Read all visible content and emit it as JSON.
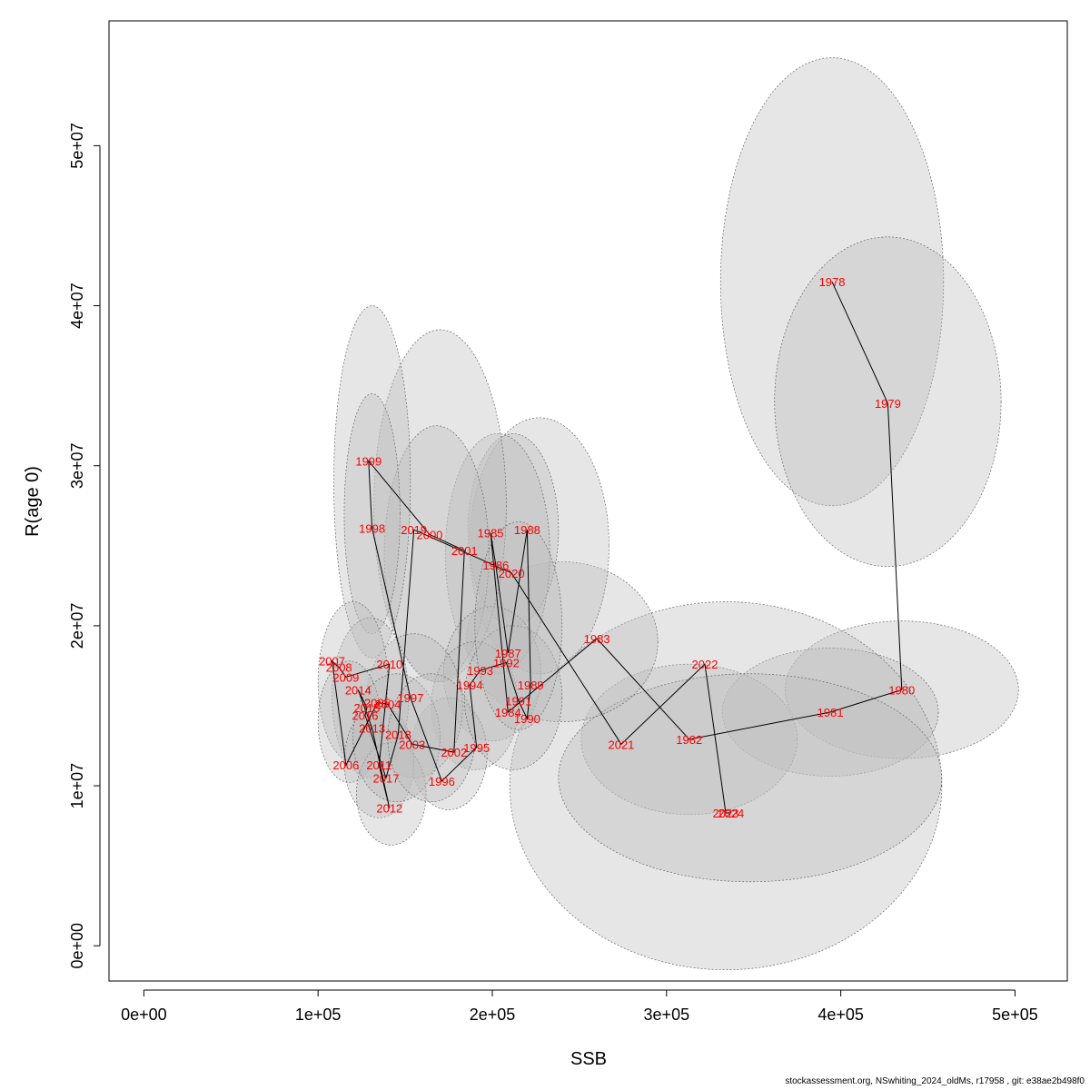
{
  "chart_data": {
    "type": "scatter",
    "xlabel": "SSB",
    "ylabel": "R(age 0)",
    "xlim": [
      -20000,
      530000
    ],
    "ylim": [
      -2200000,
      57800000
    ],
    "xticks": [
      0,
      100000,
      200000,
      300000,
      400000,
      500000
    ],
    "xtick_labels": [
      "0e+00",
      "1e+05",
      "2e+05",
      "3e+05",
      "4e+05",
      "5e+05"
    ],
    "yticks": [
      0,
      10000000,
      20000000,
      30000000,
      40000000,
      50000000
    ],
    "ytick_labels": [
      "0e+00",
      "1e+07",
      "2e+07",
      "3e+07",
      "4e+07",
      "5e+07"
    ],
    "colors": {
      "points": "#ff0000",
      "line": "#000000",
      "ellipse_fill": "#bebebe",
      "ellipse_stroke": "#666666"
    },
    "points": [
      {
        "year": "1978",
        "x": 395000,
        "y": 41500000
      },
      {
        "year": "1979",
        "x": 427000,
        "y": 33900000
      },
      {
        "year": "1980",
        "x": 435000,
        "y": 16000000
      },
      {
        "year": "1981",
        "x": 394000,
        "y": 14600000
      },
      {
        "year": "1982",
        "x": 313000,
        "y": 12900000
      },
      {
        "year": "1983",
        "x": 260000,
        "y": 19200000
      },
      {
        "year": "1984",
        "x": 209000,
        "y": 14600000
      },
      {
        "year": "1985",
        "x": 199000,
        "y": 25800000
      },
      {
        "year": "1986",
        "x": 202000,
        "y": 23800000
      },
      {
        "year": "1987",
        "x": 209000,
        "y": 18300000
      },
      {
        "year": "1988",
        "x": 220000,
        "y": 26000000
      },
      {
        "year": "1989",
        "x": 222000,
        "y": 16300000
      },
      {
        "year": "1990",
        "x": 220000,
        "y": 14200000
      },
      {
        "year": "1991",
        "x": 215000,
        "y": 15300000
      },
      {
        "year": "1992",
        "x": 208000,
        "y": 17700000
      },
      {
        "year": "1993",
        "x": 193000,
        "y": 17200000
      },
      {
        "year": "1994",
        "x": 187000,
        "y": 16300000
      },
      {
        "year": "1995",
        "x": 191000,
        "y": 12400000
      },
      {
        "year": "1996",
        "x": 171000,
        "y": 10300000
      },
      {
        "year": "1997",
        "x": 153000,
        "y": 15500000
      },
      {
        "year": "1998",
        "x": 131000,
        "y": 26100000
      },
      {
        "year": "1999",
        "x": 129000,
        "y": 30300000
      },
      {
        "year": "2000",
        "x": 164000,
        "y": 25700000
      },
      {
        "year": "2001",
        "x": 184000,
        "y": 24700000
      },
      {
        "year": "2002",
        "x": 178000,
        "y": 12100000
      },
      {
        "year": "2003",
        "x": 154000,
        "y": 12600000
      },
      {
        "year": "2004",
        "x": 140000,
        "y": 15100000
      },
      {
        "year": "2005",
        "x": 134000,
        "y": 15200000
      },
      {
        "year": "2006",
        "x": 116000,
        "y": 11300000
      },
      {
        "year": "2007",
        "x": 108000,
        "y": 17800000
      },
      {
        "year": "2008",
        "x": 112000,
        "y": 17400000
      },
      {
        "year": "2009",
        "x": 116000,
        "y": 16800000
      },
      {
        "year": "2010",
        "x": 141000,
        "y": 17600000
      },
      {
        "year": "2011",
        "x": 135000,
        "y": 11300000
      },
      {
        "year": "2012",
        "x": 141000,
        "y": 8600000
      },
      {
        "year": "2013",
        "x": 131000,
        "y": 13600000
      },
      {
        "year": "2014",
        "x": 123000,
        "y": 16000000
      },
      {
        "year": "2015",
        "x": 128000,
        "y": 14900000
      },
      {
        "year": "2016",
        "x": 127000,
        "y": 14400000
      },
      {
        "year": "2017",
        "x": 139000,
        "y": 10500000
      },
      {
        "year": "2018",
        "x": 146000,
        "y": 13200000
      },
      {
        "year": "2019",
        "x": 155000,
        "y": 26000000
      },
      {
        "year": "2020",
        "x": 211000,
        "y": 23300000
      },
      {
        "year": "2021",
        "x": 274000,
        "y": 12600000
      },
      {
        "year": "2022",
        "x": 322000,
        "y": 17600000
      },
      {
        "year": "2023",
        "x": 334000,
        "y": 8300000
      },
      {
        "year": "2024",
        "x": 337000,
        "y": 8300000
      }
    ],
    "uncertainty_ellipses": [
      {
        "cx": 395000,
        "cy": 41500000,
        "rx": 64000,
        "ry": 14000000
      },
      {
        "cx": 427000,
        "cy": 34000000,
        "rx": 65000,
        "ry": 10300000
      },
      {
        "cx": 435000,
        "cy": 16000000,
        "rx": 67000,
        "ry": 4300000
      },
      {
        "cx": 394000,
        "cy": 14600000,
        "rx": 62000,
        "ry": 4000000
      },
      {
        "cx": 313000,
        "cy": 12900000,
        "rx": 62000,
        "ry": 4700000
      },
      {
        "cx": 334000,
        "cy": 10000000,
        "rx": 124000,
        "ry": 11500000
      },
      {
        "cx": 348000,
        "cy": 10500000,
        "rx": 110000,
        "ry": 6500000
      },
      {
        "cx": 240000,
        "cy": 19000000,
        "rx": 55000,
        "ry": 5000000
      },
      {
        "cx": 227000,
        "cy": 25000000,
        "rx": 40000,
        "ry": 8000000
      },
      {
        "cx": 212000,
        "cy": 26000000,
        "rx": 26000,
        "ry": 6000000
      },
      {
        "cx": 203000,
        "cy": 24500000,
        "rx": 30000,
        "ry": 7500000
      },
      {
        "cx": 170000,
        "cy": 27500000,
        "rx": 38000,
        "ry": 11000000
      },
      {
        "cx": 168000,
        "cy": 24500000,
        "rx": 30000,
        "ry": 8000000
      },
      {
        "cx": 131000,
        "cy": 29000000,
        "rx": 22000,
        "ry": 11000000
      },
      {
        "cx": 131000,
        "cy": 27000000,
        "rx": 16000,
        "ry": 7500000
      },
      {
        "cx": 200000,
        "cy": 17000000,
        "rx": 28000,
        "ry": 4200000
      },
      {
        "cx": 190000,
        "cy": 15000000,
        "rx": 25000,
        "ry": 4000000
      },
      {
        "cx": 175000,
        "cy": 12000000,
        "rx": 22000,
        "ry": 3500000
      },
      {
        "cx": 155000,
        "cy": 15000000,
        "rx": 28000,
        "ry": 4500000
      },
      {
        "cx": 130000,
        "cy": 15500000,
        "rx": 22000,
        "ry": 5000000
      },
      {
        "cx": 120000,
        "cy": 16500000,
        "rx": 20000,
        "ry": 5000000
      },
      {
        "cx": 118000,
        "cy": 14000000,
        "rx": 18000,
        "ry": 3800000
      },
      {
        "cx": 135000,
        "cy": 11500000,
        "rx": 20000,
        "ry": 3500000
      },
      {
        "cx": 142000,
        "cy": 9500000,
        "rx": 20000,
        "ry": 3200000
      },
      {
        "cx": 145000,
        "cy": 13000000,
        "rx": 25000,
        "ry": 4000000
      },
      {
        "cx": 165000,
        "cy": 13000000,
        "rx": 25000,
        "ry": 4000000
      },
      {
        "cx": 212000,
        "cy": 15500000,
        "rx": 28000,
        "ry": 4500000
      },
      {
        "cx": 215000,
        "cy": 20000000,
        "rx": 25000,
        "ry": 6500000
      }
    ]
  },
  "footer": "stockassessment.org, NSwhiting_2024_oldMs, r17958 , git: e38ae2b498f0"
}
